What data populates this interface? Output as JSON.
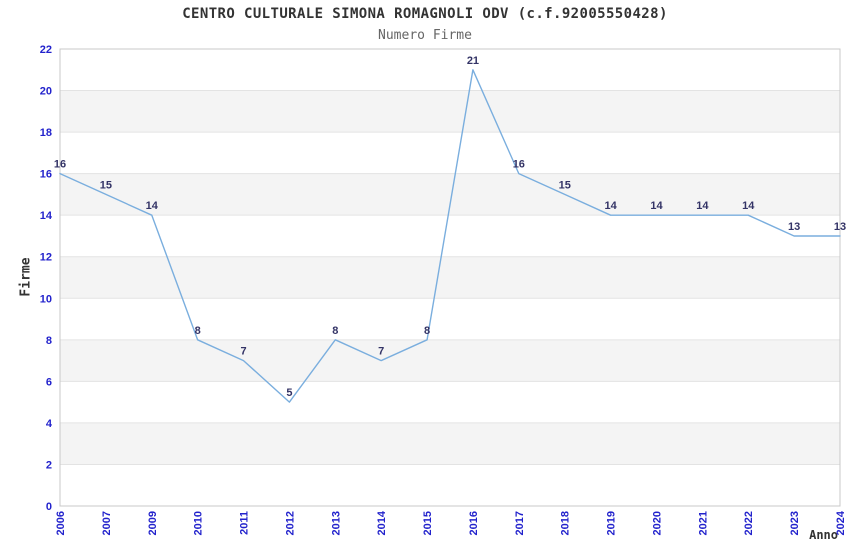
{
  "chart_data": {
    "type": "line",
    "title": "CENTRO CULTURALE SIMONA ROMAGNOLI ODV (c.f.92005550428)",
    "subtitle": "Numero Firme",
    "xlabel": "Anno",
    "ylabel": "Firme",
    "categories": [
      "2006",
      "2007",
      "2009",
      "2010",
      "2011",
      "2012",
      "2013",
      "2014",
      "2015",
      "2016",
      "2017",
      "2018",
      "2019",
      "2020",
      "2021",
      "2022",
      "2023",
      "2024"
    ],
    "values": [
      16,
      15,
      14,
      8,
      7,
      5,
      8,
      7,
      8,
      21,
      16,
      15,
      14,
      14,
      14,
      14,
      13,
      13
    ],
    "ylim": [
      0,
      22
    ],
    "ytick_step": 2,
    "grid": true,
    "legend_position": "none",
    "x_tick_rotation": -90,
    "data_labels_visible": true,
    "colors": {
      "line": "#7aaede",
      "data_label": "#333366",
      "tick_label": "#2222cc",
      "band_fill": "#f4f4f4",
      "gridline": "#e3e3e3",
      "border": "#c8c8c8",
      "title": "#333333",
      "subtitle": "#666666",
      "axis_title": "#333333",
      "background": "#ffffff"
    }
  }
}
